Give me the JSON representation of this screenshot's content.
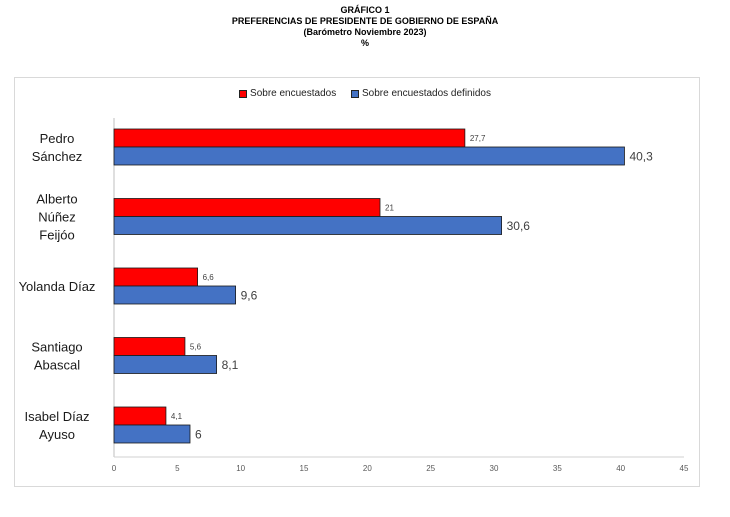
{
  "header": {
    "line1": "GRÁFICO 1",
    "line2": "PREFERENCIAS DE PRESIDENTE DE GOBIERNO DE ESPAÑA",
    "line3": "(Barómetro Noviembre 2023)",
    "line4": "%"
  },
  "chart_data": {
    "type": "bar",
    "orientation": "horizontal",
    "categories": [
      [
        "Pedro",
        "Sánchez"
      ],
      [
        "Alberto",
        "Núñez",
        "Feijóo"
      ],
      [
        "Yolanda Díaz"
      ],
      [
        "Santiago",
        "Abascal"
      ],
      [
        "Isabel Díaz",
        "Ayuso"
      ]
    ],
    "series": [
      {
        "name": "Sobre encuestados",
        "color": "#ff0000",
        "values": [
          27.7,
          21,
          6.6,
          5.6,
          4.1
        ],
        "labels": [
          "27,7",
          "21",
          "6,6",
          "5,6",
          "4,1"
        ]
      },
      {
        "name": "Sobre encuestados definidos",
        "color": "#4472c4",
        "values": [
          40.3,
          30.6,
          9.6,
          8.1,
          6
        ],
        "labels": [
          "40,3",
          "30,6",
          "9,6",
          "8,1",
          "6"
        ]
      }
    ],
    "xlim": [
      0,
      45
    ],
    "xticks": [
      0,
      5,
      10,
      15,
      20,
      25,
      30,
      35,
      40,
      45
    ],
    "grid": false,
    "legend_position": "top"
  }
}
